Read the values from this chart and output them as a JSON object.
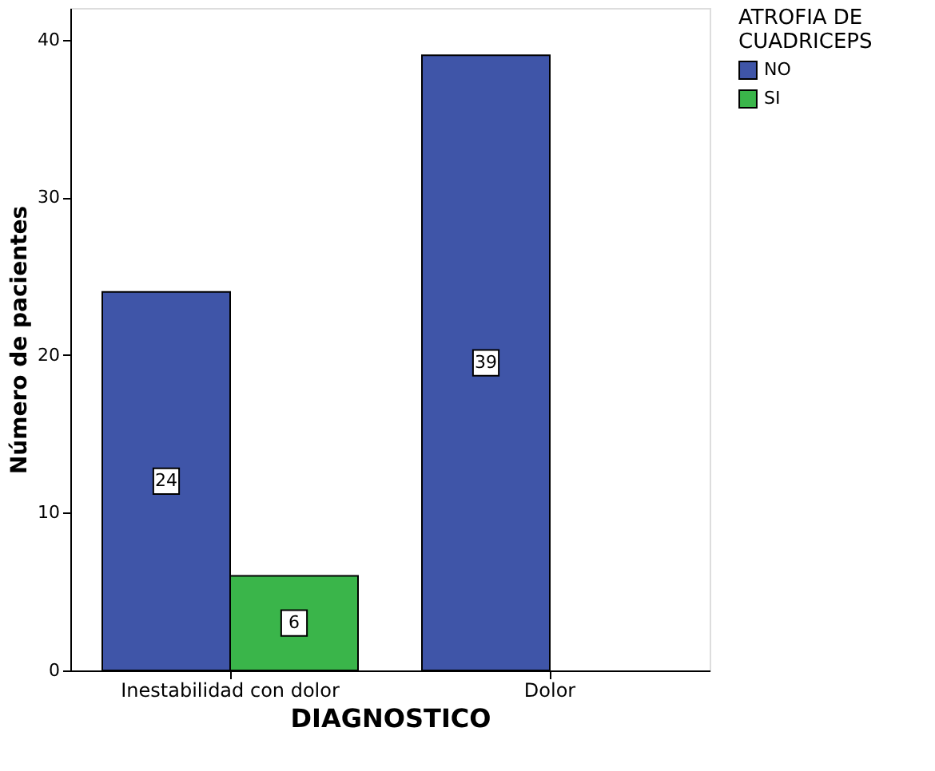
{
  "chart_data": {
    "type": "bar",
    "xlabel": "DIAGNOSTICO",
    "ylabel": "Número de pacientes",
    "legend_title": "ATROFIA DE CUADRICEPS",
    "categories": [
      "Inestabilidad con dolor",
      "Dolor"
    ],
    "series": [
      {
        "name": "NO",
        "color": "#3f55a8",
        "values": [
          24,
          39
        ]
      },
      {
        "name": "SI",
        "color": "#3ab54a",
        "values": [
          6,
          null
        ]
      }
    ],
    "ylim": [
      0,
      42
    ],
    "yticks": [
      0,
      10,
      20,
      30,
      40
    ],
    "grid": false,
    "legend": "top right",
    "data_labels": true
  }
}
